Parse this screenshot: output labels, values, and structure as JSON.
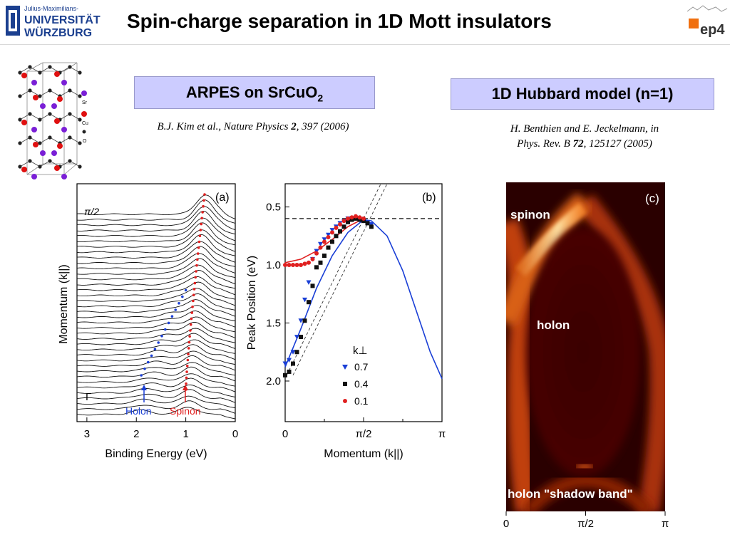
{
  "header": {
    "title": "Spin-charge separation in 1D Mott insulators",
    "logo_left_top": "Julius-Maximilians-",
    "logo_left_line1": "UNIVERSITÄT",
    "logo_left_line2": "WÜRZBURG",
    "logo_right": "ep4"
  },
  "crystal": {
    "legend": [
      "Sr",
      "Cu",
      "O"
    ],
    "colors": [
      "#7a1fd6",
      "#e01010",
      "#222222"
    ]
  },
  "left_box": {
    "title_main": "ARPES on SrCuO",
    "title_sub": "2"
  },
  "left_ref": {
    "pre": "B.J. Kim et al., Nature Physics ",
    "vol": "2",
    "post": ", 397 (2006)"
  },
  "right_box": {
    "title": "1D Hubbard model (n=1)"
  },
  "right_ref": {
    "line1": "H. Benthien and E. Jeckelmann, in",
    "pre2": "Phys. Rev. B ",
    "vol": "72",
    "post2": ", 125127 (2005)"
  },
  "panel_a": {
    "label": "(a)",
    "xlabel": "Binding Energy (eV)",
    "ylabel": "Momentum (k||)",
    "xticks": [
      "3",
      "2",
      "1",
      "0"
    ],
    "pi2": "π/2",
    "gamma": "Γ",
    "holon": "Holon",
    "spinon": "Spinon",
    "holon_color": "#1a3fd6",
    "spinon_color": "#e02020"
  },
  "chart_data": [
    {
      "type": "line",
      "label": "(b)",
      "xlabel": "Momentum (k||)",
      "ylabel": "Peak Position (eV)",
      "xticks": [
        "0",
        "π/2",
        "π"
      ],
      "yticks": [
        "0.5",
        "1.0",
        "1.5",
        "2.0"
      ],
      "ylim": [
        2.35,
        0.3
      ],
      "legend_title": "k⊥",
      "series": [
        {
          "name": "0.7",
          "marker": "triangle",
          "color": "#1a3fd6",
          "x": [
            0,
            0.05,
            0.1,
            0.15,
            0.2,
            0.25,
            0.3,
            0.35,
            0.4,
            0.45,
            0.5,
            0.55,
            0.6,
            0.65,
            0.7,
            0.75,
            0.8,
            0.85,
            0.9,
            0.95,
            1.0,
            1.05,
            1.1
          ],
          "y": [
            1.85,
            1.82,
            1.75,
            1.62,
            1.48,
            1.3,
            1.15,
            0.95,
            0.88,
            0.82,
            0.78,
            0.74,
            0.7,
            0.67,
            0.64,
            0.62,
            0.6,
            0.6,
            0.6,
            0.61,
            0.62,
            0.63,
            0.65
          ]
        },
        {
          "name": "0.4",
          "marker": "square",
          "color": "#111111",
          "x": [
            0,
            0.05,
            0.1,
            0.15,
            0.2,
            0.25,
            0.3,
            0.35,
            0.4,
            0.45,
            0.5,
            0.55,
            0.6,
            0.65,
            0.7,
            0.75,
            0.8,
            0.85,
            0.9,
            0.95,
            1.0,
            1.05,
            1.1
          ],
          "y": [
            1.95,
            1.92,
            1.85,
            1.75,
            1.62,
            1.48,
            1.32,
            1.18,
            1.02,
            0.98,
            0.92,
            0.85,
            0.8,
            0.75,
            0.71,
            0.67,
            0.63,
            0.61,
            0.6,
            0.61,
            0.62,
            0.64,
            0.67
          ]
        },
        {
          "name": "0.1",
          "marker": "circle",
          "color": "#e02020",
          "x": [
            0,
            0.05,
            0.1,
            0.15,
            0.2,
            0.25,
            0.3,
            0.35,
            0.4,
            0.45,
            0.5,
            0.55,
            0.6,
            0.65,
            0.7,
            0.75,
            0.8,
            0.85,
            0.9,
            0.95,
            1.0
          ],
          "y": [
            1.0,
            1.0,
            1.0,
            1.0,
            1.0,
            0.99,
            0.98,
            0.95,
            0.9,
            0.85,
            0.8,
            0.76,
            0.72,
            0.68,
            0.65,
            0.62,
            0.6,
            0.59,
            0.58,
            0.59,
            0.6
          ]
        }
      ],
      "curves": [
        {
          "kind": "blue-solid",
          "color": "#1a3fd6",
          "x": [
            0,
            0.2,
            0.4,
            0.6,
            0.8,
            1.0,
            1.1,
            1.3,
            1.5,
            1.7,
            1.85,
            2.0
          ],
          "y": [
            1.88,
            1.55,
            1.2,
            0.92,
            0.72,
            0.61,
            0.62,
            0.75,
            1.05,
            1.45,
            1.75,
            1.98
          ]
        },
        {
          "kind": "red-solid",
          "color": "#e02020",
          "x": [
            0,
            0.2,
            0.4,
            0.6,
            0.8,
            1.0
          ],
          "y": [
            0.98,
            0.95,
            0.88,
            0.78,
            0.67,
            0.6
          ]
        },
        {
          "kind": "dashed-horizontal",
          "color": "#111111",
          "y": [
            0.6
          ]
        }
      ]
    },
    {
      "type": "heatmap",
      "label": "(c)",
      "xticks": [
        "0",
        "π/2",
        "π"
      ],
      "annotations": [
        "spinon",
        "holon",
        "holon \"shadow band\""
      ]
    }
  ]
}
